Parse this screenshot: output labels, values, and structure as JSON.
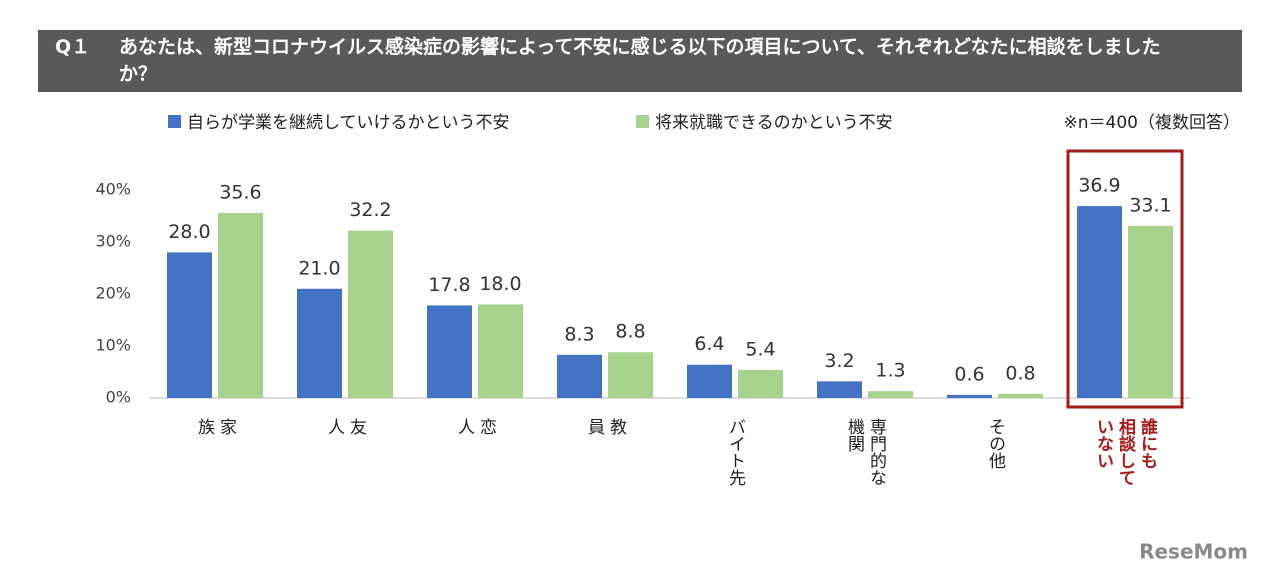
{
  "chart_data": {
    "type": "bar",
    "question_number": "Q１",
    "title": "あなたは、新型コロナウイルス感染症の影響によって不安に感じる以下の項目について、それぞれどなたに相談をしましたか？",
    "annotation": "※n＝400（複数回答）",
    "watermark": "ReseMom",
    "categories": [
      "家\n族",
      "友\n人",
      "恋\n人",
      "教\n員",
      "バイト先",
      "専門的な\n機関",
      "その他",
      "誰にも\n相談して\nいない"
    ],
    "series": [
      {
        "name": "自らが学業を継続していけるかという不安",
        "color": "#4472c4",
        "values": [
          28.0,
          21.0,
          17.8,
          8.3,
          6.4,
          3.2,
          0.6,
          36.9
        ],
        "value_labels": [
          "28.0",
          "21.0",
          "17.8",
          "8.3",
          "6.4",
          "3.2",
          "0.6",
          "36.9"
        ]
      },
      {
        "name": "将来就職できるのかという不安",
        "color": "#a9d18e",
        "values": [
          35.6,
          32.2,
          18.0,
          8.8,
          5.4,
          1.3,
          0.8,
          33.1
        ],
        "value_labels": [
          "35.6",
          "32.2",
          "18.0",
          "8.8",
          "5.4",
          "1.3",
          "0.8",
          "33.1"
        ]
      }
    ],
    "ylim": [
      0,
      40
    ],
    "yticks": [
      {
        "value": 0,
        "label": "0%"
      },
      {
        "value": 10,
        "label": "10%"
      },
      {
        "value": 20,
        "label": "20%"
      },
      {
        "value": 30,
        "label": "30%"
      },
      {
        "value": 40,
        "label": "40%"
      }
    ],
    "grid": false,
    "legend": "top",
    "highlight_index": 7,
    "highlight_color": "#a51c1c"
  }
}
